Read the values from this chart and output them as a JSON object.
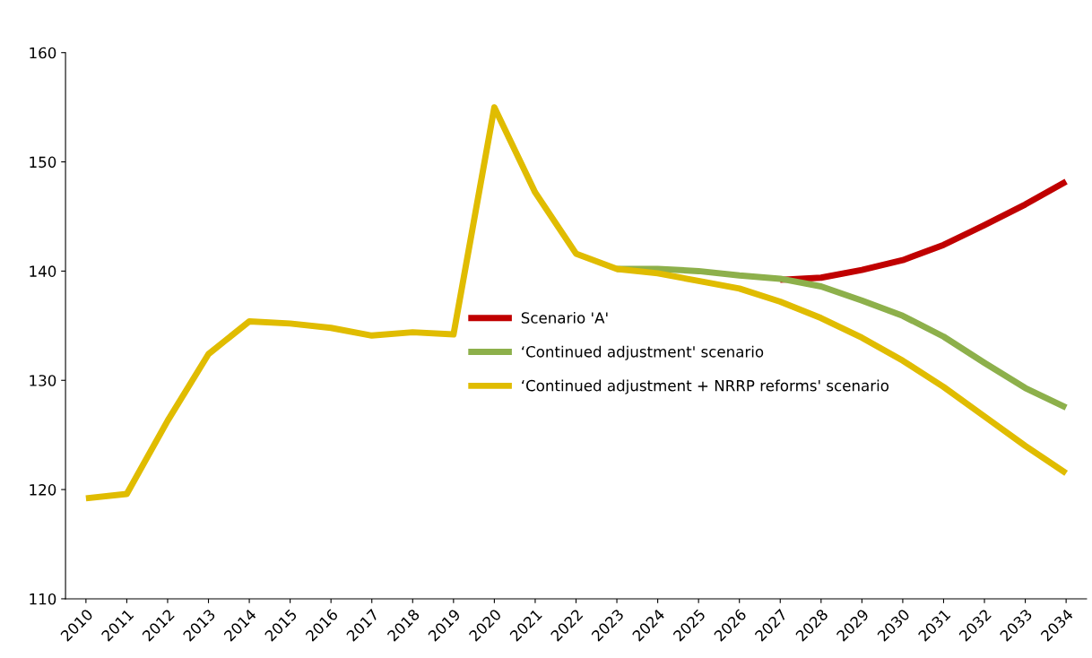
{
  "chart_data": {
    "type": "line",
    "categories": [
      "2010",
      "2011",
      "2012",
      "2013",
      "2014",
      "2015",
      "2016",
      "2017",
      "2018",
      "2019",
      "2020",
      "2021",
      "2022",
      "2023",
      "2024",
      "2025",
      "2026",
      "2027",
      "2028",
      "2029",
      "2030",
      "2031",
      "2032",
      "2033",
      "2034"
    ],
    "series": [
      {
        "name": "Scenario 'A'",
        "color": "#c00000",
        "values": [
          null,
          null,
          null,
          null,
          null,
          null,
          null,
          null,
          null,
          null,
          null,
          null,
          null,
          null,
          null,
          null,
          null,
          139.2,
          139.4,
          140.1,
          141.0,
          142.4,
          144.2,
          146.1,
          148.2
        ]
      },
      {
        "name": "‘Continued adjustment' scenario",
        "color": "#8db04b",
        "values": [
          null,
          null,
          null,
          null,
          null,
          null,
          null,
          null,
          null,
          null,
          null,
          null,
          null,
          140.2,
          140.2,
          140.0,
          139.6,
          139.3,
          138.6,
          137.3,
          135.9,
          134.0,
          131.6,
          129.3,
          127.5
        ]
      },
      {
        "name": "‘Continued adjustment + NRRP reforms' scenario",
        "color": "#e0bc00",
        "values": [
          119.2,
          119.6,
          126.3,
          132.4,
          135.4,
          135.2,
          134.8,
          134.1,
          134.4,
          134.2,
          155.0,
          147.2,
          141.6,
          140.2,
          139.8,
          139.1,
          138.4,
          137.2,
          135.7,
          133.9,
          131.8,
          129.4,
          126.7,
          124.0,
          121.5
        ]
      }
    ],
    "ylim": [
      110,
      160
    ],
    "yticks": [
      110,
      120,
      130,
      140,
      150,
      160
    ],
    "grid": false,
    "legend": "center right",
    "marker": "none",
    "line_style": "solid"
  }
}
